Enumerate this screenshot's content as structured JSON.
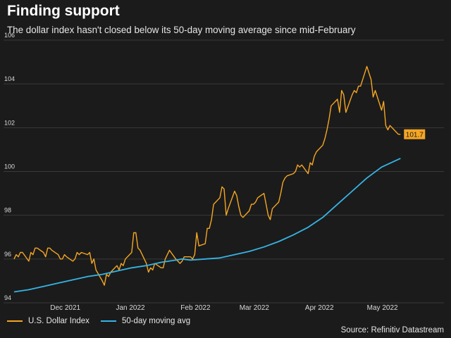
{
  "header": {
    "title": "Finding support",
    "subtitle": "The dollar index hasn't closed below its 50-day moving average since mid-February"
  },
  "source": "Source: Refinitiv Datastream",
  "colors": {
    "background": "#1b1b1b",
    "dollar_index": "#f5a623",
    "moving_avg": "#36b4e5",
    "gridline": "#3a3a3a",
    "last_value_badge": "#f5a623"
  },
  "chart_data": {
    "type": "line",
    "title": "Finding support",
    "subtitle": "The dollar index hasn't closed below its 50-day moving average since mid-February",
    "xlabel": "",
    "ylabel": "",
    "ylim": [
      94,
      106
    ],
    "y_ticks": [
      "94",
      "96",
      "98",
      "100",
      "102",
      "104",
      "106"
    ],
    "x_range": [
      "2021-11-15",
      "2022-06-01"
    ],
    "x_ticks": [
      {
        "date": "2021-12-01",
        "label": "Dec 2021"
      },
      {
        "date": "2022-01-01",
        "label": "Jan 2022"
      },
      {
        "date": "2022-02-01",
        "label": "Feb 2022"
      },
      {
        "date": "2022-03-01",
        "label": "Mar 2022"
      },
      {
        "date": "2022-04-01",
        "label": "Apr 2022"
      },
      {
        "date": "2022-05-01",
        "label": "May 2022"
      }
    ],
    "grid": "horizontal",
    "legend_position": "bottom-left",
    "last_value_label": "101.7",
    "series": [
      {
        "name": "U.S. Dollar Index",
        "color": "#f5a623",
        "points": [
          [
            "2021-11-15",
            96.0
          ],
          [
            "2021-11-16",
            96.2
          ],
          [
            "2021-11-17",
            96.1
          ],
          [
            "2021-11-18",
            96.3
          ],
          [
            "2021-11-19",
            96.3
          ],
          [
            "2021-11-22",
            95.9
          ],
          [
            "2021-11-23",
            96.3
          ],
          [
            "2021-11-24",
            96.2
          ],
          [
            "2021-11-25",
            96.5
          ],
          [
            "2021-11-26",
            96.5
          ],
          [
            "2021-11-29",
            96.3
          ],
          [
            "2021-11-30",
            96.1
          ],
          [
            "2021-12-01",
            96.5
          ],
          [
            "2021-12-02",
            96.5
          ],
          [
            "2021-12-03",
            96.4
          ],
          [
            "2021-12-06",
            96.2
          ],
          [
            "2021-12-07",
            96.0
          ],
          [
            "2021-12-08",
            96.0
          ],
          [
            "2021-12-09",
            96.2
          ],
          [
            "2021-12-10",
            96.1
          ],
          [
            "2021-12-13",
            95.9
          ],
          [
            "2021-12-14",
            96.0
          ],
          [
            "2021-12-15",
            96.3
          ],
          [
            "2021-12-16",
            96.2
          ],
          [
            "2021-12-17",
            96.3
          ],
          [
            "2021-12-20",
            96.2
          ],
          [
            "2021-12-21",
            96.3
          ],
          [
            "2021-12-22",
            95.8
          ],
          [
            "2021-12-23",
            96.0
          ],
          [
            "2021-12-24",
            95.5
          ],
          [
            "2021-12-27",
            95.0
          ],
          [
            "2021-12-28",
            94.8
          ],
          [
            "2021-12-29",
            95.3
          ],
          [
            "2021-12-30",
            95.2
          ],
          [
            "2021-12-31",
            95.4
          ],
          [
            "2022-01-03",
            95.7
          ],
          [
            "2022-01-04",
            95.5
          ],
          [
            "2022-01-05",
            95.8
          ],
          [
            "2022-01-06",
            95.7
          ],
          [
            "2022-01-07",
            96.0
          ],
          [
            "2022-01-10",
            96.3
          ],
          [
            "2022-01-11",
            97.2
          ],
          [
            "2022-01-12",
            97.2
          ],
          [
            "2022-01-13",
            96.5
          ],
          [
            "2022-01-14",
            96.4
          ],
          [
            "2022-01-17",
            95.8
          ],
          [
            "2022-01-18",
            95.4
          ],
          [
            "2022-01-19",
            95.6
          ],
          [
            "2022-01-20",
            95.5
          ],
          [
            "2022-01-21",
            95.8
          ],
          [
            "2022-01-24",
            95.6
          ],
          [
            "2022-01-25",
            95.6
          ],
          [
            "2022-01-26",
            96.0
          ],
          [
            "2022-01-27",
            96.2
          ],
          [
            "2022-01-28",
            96.4
          ],
          [
            "2022-01-31",
            96.0
          ],
          [
            "2022-02-01",
            95.9
          ],
          [
            "2022-02-02",
            95.8
          ],
          [
            "2022-02-03",
            95.9
          ],
          [
            "2022-02-04",
            96.1
          ],
          [
            "2022-02-07",
            96.1
          ],
          [
            "2022-02-08",
            96.0
          ],
          [
            "2022-02-09",
            96.2
          ],
          [
            "2022-02-10",
            97.2
          ],
          [
            "2022-02-11",
            96.6
          ],
          [
            "2022-02-14",
            96.7
          ],
          [
            "2022-02-15",
            97.4
          ],
          [
            "2022-02-16",
            97.4
          ],
          [
            "2022-02-17",
            97.8
          ],
          [
            "2022-02-18",
            98.5
          ],
          [
            "2022-02-21",
            98.8
          ],
          [
            "2022-02-22",
            99.3
          ],
          [
            "2022-02-23",
            99.2
          ],
          [
            "2022-02-24",
            98.0
          ],
          [
            "2022-02-25",
            98.3
          ],
          [
            "2022-02-28",
            99.1
          ],
          [
            "2022-03-01",
            98.9
          ],
          [
            "2022-03-02",
            98.4
          ],
          [
            "2022-03-03",
            98.0
          ],
          [
            "2022-03-04",
            97.9
          ],
          [
            "2022-03-07",
            98.2
          ],
          [
            "2022-03-08",
            98.5
          ],
          [
            "2022-03-09",
            98.5
          ],
          [
            "2022-03-10",
            98.6
          ],
          [
            "2022-03-11",
            98.8
          ],
          [
            "2022-03-14",
            99.0
          ],
          [
            "2022-03-15",
            98.5
          ],
          [
            "2022-03-16",
            98.0
          ],
          [
            "2022-03-17",
            97.8
          ],
          [
            "2022-03-18",
            98.3
          ],
          [
            "2022-03-21",
            98.6
          ],
          [
            "2022-03-22",
            99.0
          ],
          [
            "2022-03-23",
            99.5
          ],
          [
            "2022-03-24",
            99.7
          ],
          [
            "2022-03-25",
            99.8
          ],
          [
            "2022-03-28",
            99.9
          ],
          [
            "2022-03-29",
            100.0
          ],
          [
            "2022-03-30",
            100.3
          ],
          [
            "2022-03-31",
            100.2
          ],
          [
            "2022-04-01",
            100.3
          ],
          [
            "2022-04-04",
            99.9
          ],
          [
            "2022-04-05",
            100.4
          ],
          [
            "2022-04-06",
            100.3
          ],
          [
            "2022-04-07",
            100.7
          ],
          [
            "2022-04-08",
            100.9
          ],
          [
            "2022-04-11",
            101.2
          ],
          [
            "2022-04-12",
            101.5
          ],
          [
            "2022-04-13",
            101.9
          ],
          [
            "2022-04-14",
            102.4
          ],
          [
            "2022-04-15",
            103.0
          ],
          [
            "2022-04-18",
            103.3
          ],
          [
            "2022-04-19",
            102.7
          ],
          [
            "2022-04-20",
            103.7
          ],
          [
            "2022-04-21",
            103.5
          ],
          [
            "2022-04-22",
            102.7
          ],
          [
            "2022-04-25",
            103.5
          ],
          [
            "2022-04-26",
            103.7
          ],
          [
            "2022-04-27",
            103.6
          ],
          [
            "2022-04-28",
            103.9
          ],
          [
            "2022-04-29",
            103.9
          ],
          [
            "2022-05-02",
            104.8
          ],
          [
            "2022-05-03",
            104.5
          ],
          [
            "2022-05-04",
            104.2
          ],
          [
            "2022-05-05",
            103.4
          ],
          [
            "2022-05-06",
            103.7
          ],
          [
            "2022-05-09",
            102.8
          ],
          [
            "2022-05-10",
            103.2
          ],
          [
            "2022-05-11",
            102.1
          ],
          [
            "2022-05-12",
            101.9
          ],
          [
            "2022-05-13",
            102.1
          ],
          [
            "2022-05-16",
            101.8
          ],
          [
            "2022-05-17",
            101.7
          ],
          [
            "2022-05-18",
            101.7
          ]
        ]
      },
      {
        "name": "50-day moving avg",
        "color": "#36b4e5",
        "points": [
          [
            "2021-11-15",
            94.5
          ],
          [
            "2021-11-22",
            94.6
          ],
          [
            "2021-11-29",
            94.75
          ],
          [
            "2021-12-06",
            94.9
          ],
          [
            "2021-12-13",
            95.05
          ],
          [
            "2021-12-20",
            95.2
          ],
          [
            "2021-12-27",
            95.3
          ],
          [
            "2022-01-03",
            95.45
          ],
          [
            "2022-01-10",
            95.6
          ],
          [
            "2022-01-17",
            95.7
          ],
          [
            "2022-01-24",
            95.85
          ],
          [
            "2022-01-31",
            95.95
          ],
          [
            "2022-02-03",
            96.0
          ],
          [
            "2022-02-07",
            95.95
          ],
          [
            "2022-02-14",
            96.0
          ],
          [
            "2022-02-21",
            96.05
          ],
          [
            "2022-02-28",
            96.2
          ],
          [
            "2022-03-07",
            96.35
          ],
          [
            "2022-03-14",
            96.55
          ],
          [
            "2022-03-21",
            96.8
          ],
          [
            "2022-03-28",
            97.1
          ],
          [
            "2022-04-04",
            97.45
          ],
          [
            "2022-04-11",
            97.9
          ],
          [
            "2022-04-18",
            98.5
          ],
          [
            "2022-04-25",
            99.1
          ],
          [
            "2022-05-02",
            99.7
          ],
          [
            "2022-05-09",
            100.2
          ],
          [
            "2022-05-18",
            100.6
          ]
        ]
      }
    ]
  }
}
